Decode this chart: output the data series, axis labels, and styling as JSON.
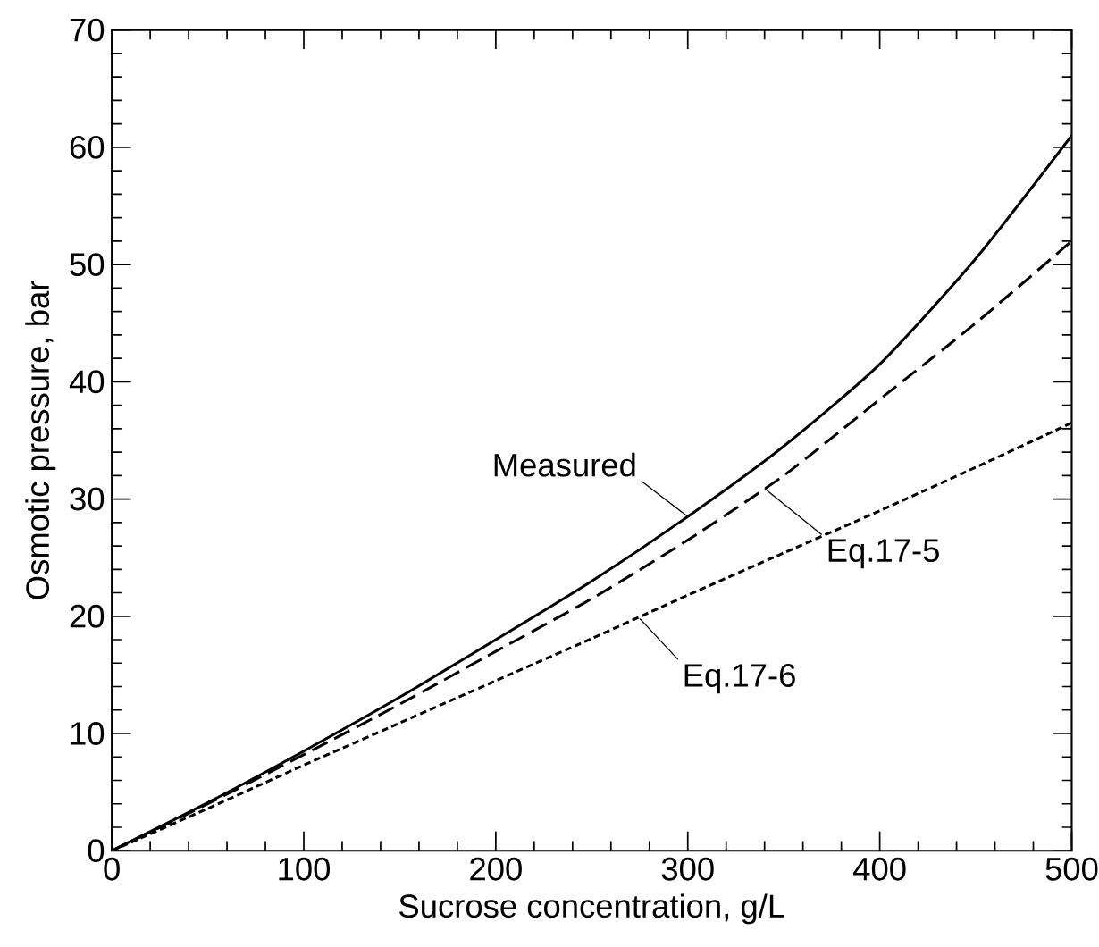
{
  "chart_data": {
    "type": "line",
    "xlabel": "Sucrose concentration, g/L",
    "ylabel": "Osmotic pressure, bar",
    "xlim": [
      0,
      500
    ],
    "ylim": [
      0,
      70
    ],
    "xticks": [
      0,
      100,
      200,
      300,
      400,
      500
    ],
    "yticks": [
      0,
      10,
      20,
      30,
      40,
      50,
      60,
      70
    ],
    "x": [
      0,
      50,
      100,
      150,
      200,
      250,
      300,
      350,
      400,
      450,
      500
    ],
    "series": [
      {
        "color": "#000000",
        "line_style": "solid",
        "values": [
          0,
          4.1,
          8.5,
          13.1,
          18,
          23,
          28.5,
          34.5,
          41.5,
          50.5,
          61
        ]
      },
      {
        "color": "#000000",
        "line_style": "dashed",
        "values": [
          0,
          4.0,
          8.2,
          12.5,
          17,
          21.5,
          26.5,
          32,
          38.5,
          45,
          52
        ]
      },
      {
        "color": "#000000",
        "line_style": "dotted",
        "values": [
          0,
          3.6,
          7.3,
          10.9,
          14.5,
          18.1,
          21.8,
          25.4,
          29,
          32.7,
          36.5
        ]
      }
    ],
    "annotations": [
      {
        "text": "Measured",
        "x": 300,
        "y": 28.5
      },
      {
        "text": "Eq.17-5",
        "x": 340,
        "y": 30.9
      },
      {
        "text": "Eq.17-6",
        "x": 275,
        "y": 19.8
      }
    ]
  }
}
